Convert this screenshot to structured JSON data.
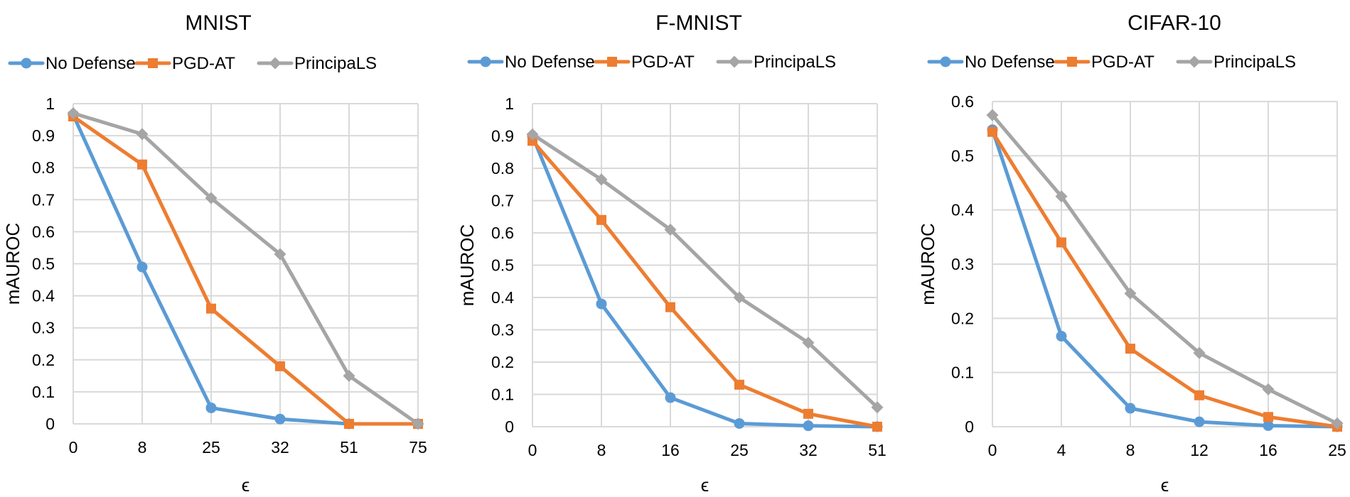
{
  "chart_data": [
    {
      "type": "line",
      "title": "MNIST",
      "xlabel": "ϵ",
      "ylabel": "mAUROC",
      "categories": [
        "0",
        "8",
        "25",
        "32",
        "51",
        "75"
      ],
      "ylim": [
        0,
        1
      ],
      "yticks": [
        "0",
        "0.1",
        "0.2",
        "0.3",
        "0.4",
        "0.5",
        "0.6",
        "0.7",
        "0.8",
        "0.9",
        "1"
      ],
      "legend_position": "top",
      "grid": true,
      "series": [
        {
          "name": "No Defense",
          "color": "#5b9bd5",
          "marker": "circle",
          "values": [
            0.965,
            0.49,
            0.05,
            0.015,
            0.0,
            0.0
          ]
        },
        {
          "name": "PGD-AT",
          "color": "#ed7d31",
          "marker": "square",
          "values": [
            0.96,
            0.81,
            0.36,
            0.18,
            0.0,
            0.0
          ]
        },
        {
          "name": "PrincipaLS",
          "color": "#a5a5a5",
          "marker": "diamond",
          "values": [
            0.97,
            0.905,
            0.705,
            0.53,
            0.15,
            0.0
          ]
        }
      ]
    },
    {
      "type": "line",
      "title": "F-MNIST",
      "xlabel": "ϵ",
      "ylabel": "mAUROC",
      "categories": [
        "0",
        "8",
        "16",
        "25",
        "32",
        "51"
      ],
      "ylim": [
        0,
        1
      ],
      "yticks": [
        "0",
        "0.1",
        "0.2",
        "0.3",
        "0.4",
        "0.5",
        "0.6",
        "0.7",
        "0.8",
        "0.9",
        "1"
      ],
      "legend_position": "top",
      "grid": true,
      "series": [
        {
          "name": "No Defense",
          "color": "#5b9bd5",
          "marker": "circle",
          "values": [
            0.9,
            0.38,
            0.09,
            0.01,
            0.003,
            0.0
          ]
        },
        {
          "name": "PGD-AT",
          "color": "#ed7d31",
          "marker": "square",
          "values": [
            0.885,
            0.64,
            0.37,
            0.13,
            0.04,
            0.0
          ]
        },
        {
          "name": "PrincipaLS",
          "color": "#a5a5a5",
          "marker": "diamond",
          "values": [
            0.905,
            0.765,
            0.61,
            0.4,
            0.26,
            0.06
          ]
        }
      ]
    },
    {
      "type": "line",
      "title": "CIFAR-10",
      "xlabel": "ϵ",
      "ylabel": "mAUROC",
      "categories": [
        "0",
        "4",
        "8",
        "12",
        "16",
        "25"
      ],
      "ylim": [
        0,
        0.6
      ],
      "yticks": [
        "0",
        "0.1",
        "0.2",
        "0.3",
        "0.4",
        "0.5",
        "0.6"
      ],
      "legend_position": "top",
      "grid": true,
      "series": [
        {
          "name": "No Defense",
          "color": "#5b9bd5",
          "marker": "circle",
          "values": [
            0.548,
            0.167,
            0.034,
            0.009,
            0.002,
            0.0
          ]
        },
        {
          "name": "PGD-AT",
          "color": "#ed7d31",
          "marker": "square",
          "values": [
            0.544,
            0.34,
            0.144,
            0.058,
            0.018,
            0.0
          ]
        },
        {
          "name": "PrincipaLS",
          "color": "#a5a5a5",
          "marker": "diamond",
          "values": [
            0.575,
            0.425,
            0.246,
            0.136,
            0.069,
            0.006
          ]
        }
      ]
    }
  ]
}
